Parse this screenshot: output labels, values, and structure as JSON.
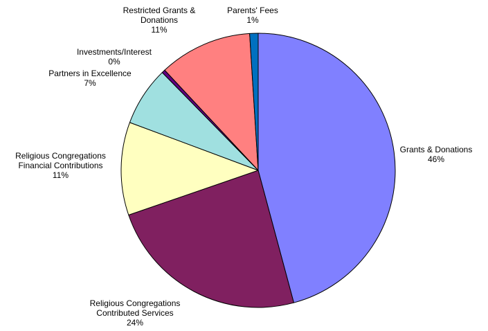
{
  "chart_data": {
    "type": "pie",
    "title": "",
    "legend": "none",
    "slices": [
      {
        "name": "Grants & Donations",
        "value": 46,
        "label_lines": [
          "Grants & Donations"
        ],
        "pct_label": "46%",
        "color": "#8080FF"
      },
      {
        "name": "Religious Congregations Contributed Services",
        "value": 24,
        "label_lines": [
          "Religious Congregations",
          "Contributed Services"
        ],
        "pct_label": "24%",
        "color": "#802060"
      },
      {
        "name": "Religious Congregations Financial Contributions",
        "value": 11,
        "label_lines": [
          "Religious Congregations",
          "Financial Contributions"
        ],
        "pct_label": "11%",
        "color": "#FFFFC0"
      },
      {
        "name": "Partners in Excellence",
        "value": 7,
        "label_lines": [
          "Partners in Excellence"
        ],
        "pct_label": "7%",
        "color": "#A0E0E0"
      },
      {
        "name": "Investments/Interest",
        "value": 0.4,
        "label_lines": [
          "Investments/Interest"
        ],
        "pct_label": "0%",
        "color": "#600080"
      },
      {
        "name": "Restricted Grants & Donations",
        "value": 11,
        "label_lines": [
          "Restricted Grants &",
          "Donations"
        ],
        "pct_label": "11%",
        "color": "#FF8080"
      },
      {
        "name": "Parents' Fees",
        "value": 1,
        "label_lines": [
          "Parents' Fees"
        ],
        "pct_label": "1%",
        "color": "#0070C0"
      }
    ]
  }
}
